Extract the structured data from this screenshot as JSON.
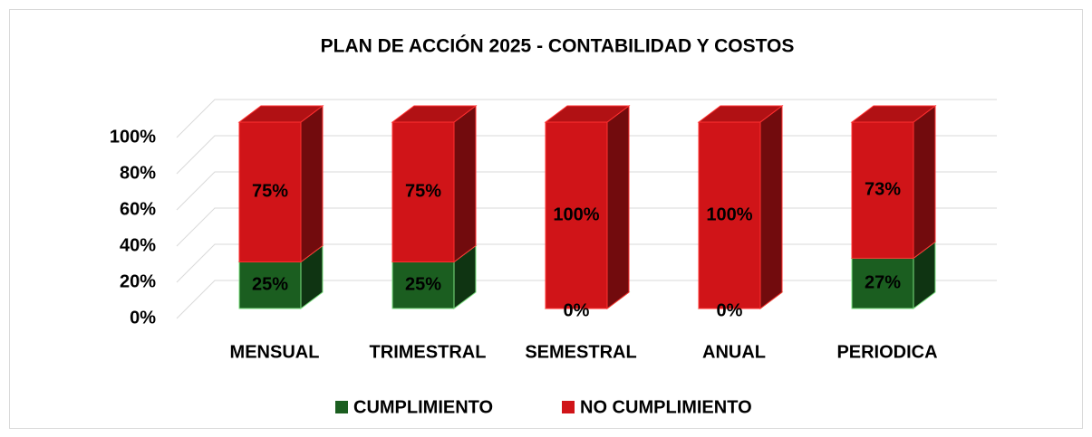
{
  "chart_data": {
    "type": "bar3d-stacked",
    "title": "PLAN DE ACCIÓN 2025 - CONTABILIDAD Y COSTOS",
    "categories": [
      "MENSUAL",
      "TRIMESTRAL",
      "SEMESTRAL",
      "ANUAL",
      "PERIODICA"
    ],
    "series": [
      {
        "name": "CUMPLIMIENTO",
        "color": "#1b5e20",
        "values": [
          25,
          25,
          0,
          0,
          27
        ],
        "value_labels": [
          "25%",
          "25%",
          "0%",
          "0%",
          "27%"
        ]
      },
      {
        "name": "NO CUMPLIMIENTO",
        "color": "#d01418",
        "values": [
          75,
          75,
          100,
          100,
          73
        ],
        "value_labels": [
          "75%",
          "75%",
          "100%",
          "100%",
          "73%"
        ]
      }
    ],
    "ylim": [
      0,
      100
    ],
    "yticks": [
      {
        "value": 0,
        "label": "0%"
      },
      {
        "value": 20,
        "label": "20%"
      },
      {
        "value": 40,
        "label": "40%"
      },
      {
        "value": 60,
        "label": "60%"
      },
      {
        "value": 80,
        "label": "80%"
      },
      {
        "value": 100,
        "label": "100%"
      }
    ],
    "grid": true,
    "legend": "bottom"
  }
}
